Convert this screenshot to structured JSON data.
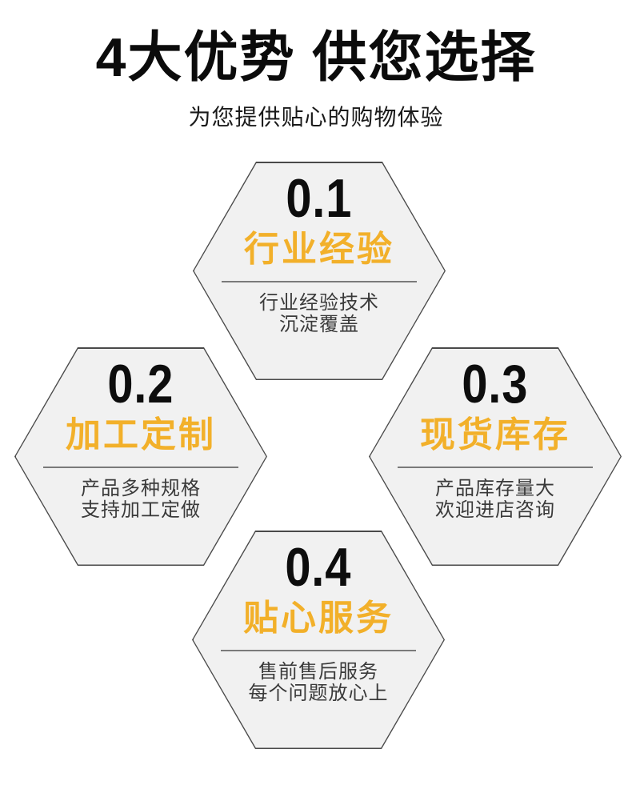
{
  "page": {
    "title": "4大优势 供您选择",
    "subtitle": "为您提供贴心的购物体验"
  },
  "colors": {
    "accent": "#F2B02A",
    "hexagon_fill": "#F1F1F1",
    "hexagon_border": "#4A4A4A",
    "title_text": "#0B0B0B",
    "body_text": "#3A3A3A"
  },
  "advantages": [
    {
      "number": "0.1",
      "heading": "行业经验",
      "desc_line1": "行业经验技术",
      "desc_line2": "沉淀覆盖"
    },
    {
      "number": "0.2",
      "heading": "加工定制",
      "desc_line1": "产品多种规格",
      "desc_line2": "支持加工定做"
    },
    {
      "number": "0.3",
      "heading": "现货库存",
      "desc_line1": "产品库存量大",
      "desc_line2": "欢迎进店咨询"
    },
    {
      "number": "0.4",
      "heading": "贴心服务",
      "desc_line1": "售前售后服务",
      "desc_line2": "每个问题放心上"
    }
  ]
}
